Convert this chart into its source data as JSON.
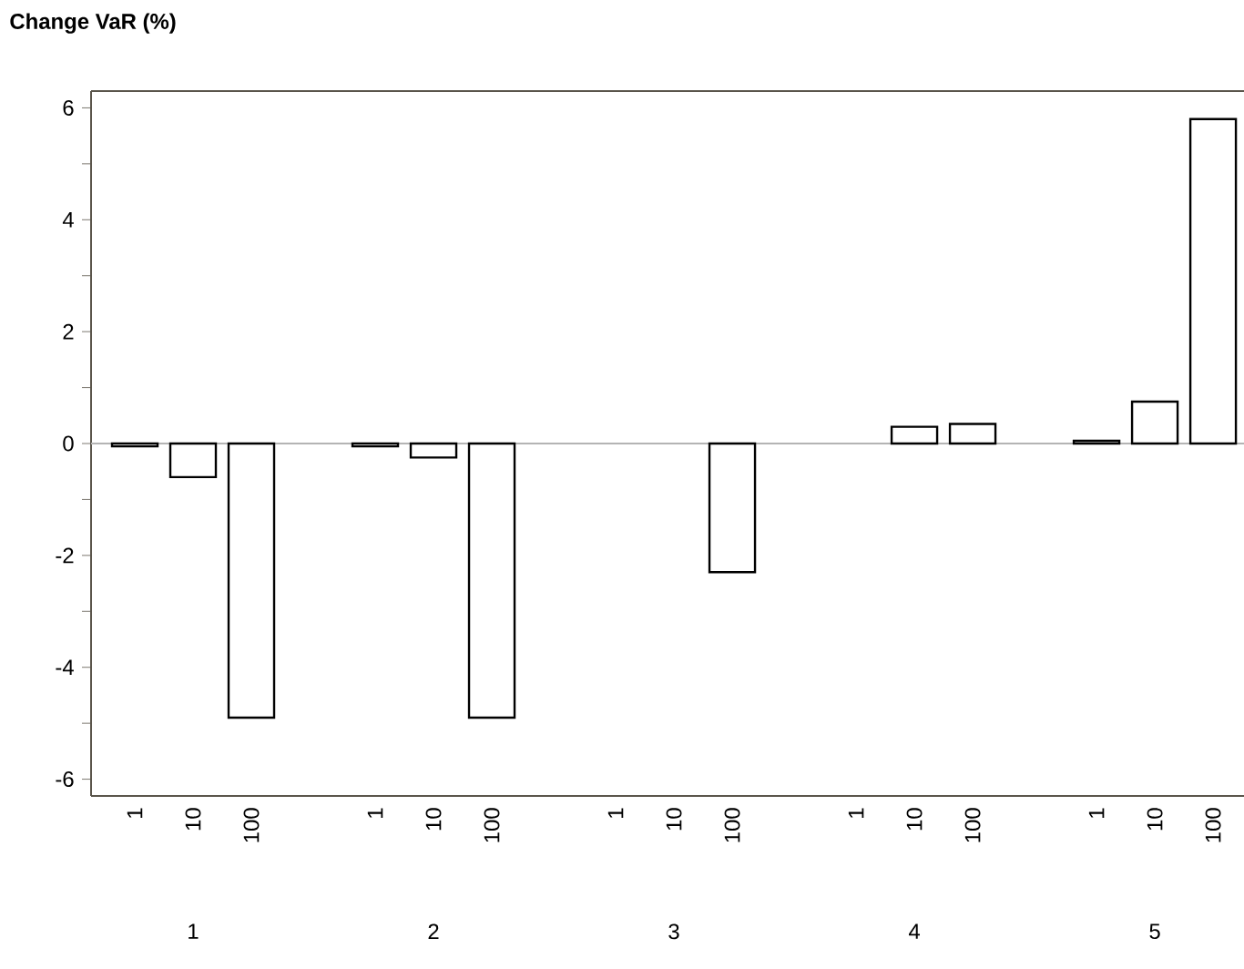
{
  "chart_data": {
    "type": "bar",
    "ylabel": "Change VaR (%)",
    "categories": [
      "1",
      "10",
      "100",
      "1",
      "10",
      "100",
      "1",
      "10",
      "100",
      "1",
      "10",
      "100",
      "1",
      "10",
      "100"
    ],
    "values": [
      -0.05,
      -0.6,
      -4.9,
      -0.05,
      -0.25,
      -4.9,
      null,
      null,
      -2.3,
      null,
      0.3,
      0.35,
      0.05,
      0.75,
      5.8
    ],
    "color": "#ffffff",
    "annotations": [
      "1",
      "2",
      "3",
      "4",
      "5"
    ],
    "ylim": [
      -6.3,
      6.3
    ],
    "yticks": [
      {
        "value": -6,
        "label": "-6"
      },
      {
        "value": -5,
        "label": null
      },
      {
        "value": -4,
        "label": "-4"
      },
      {
        "value": -3,
        "label": null
      },
      {
        "value": -2,
        "label": "-2"
      },
      {
        "value": -1,
        "label": null
      },
      0,
      {
        "value": 1,
        "label": null
      },
      2,
      {
        "value": 3,
        "label": null
      },
      4,
      {
        "value": 5,
        "label": null
      },
      6
    ],
    "ref_lines": [
      {
        "axis": "y",
        "value": 0,
        "color": "#b4b4b4"
      }
    ],
    "grid": false
  }
}
